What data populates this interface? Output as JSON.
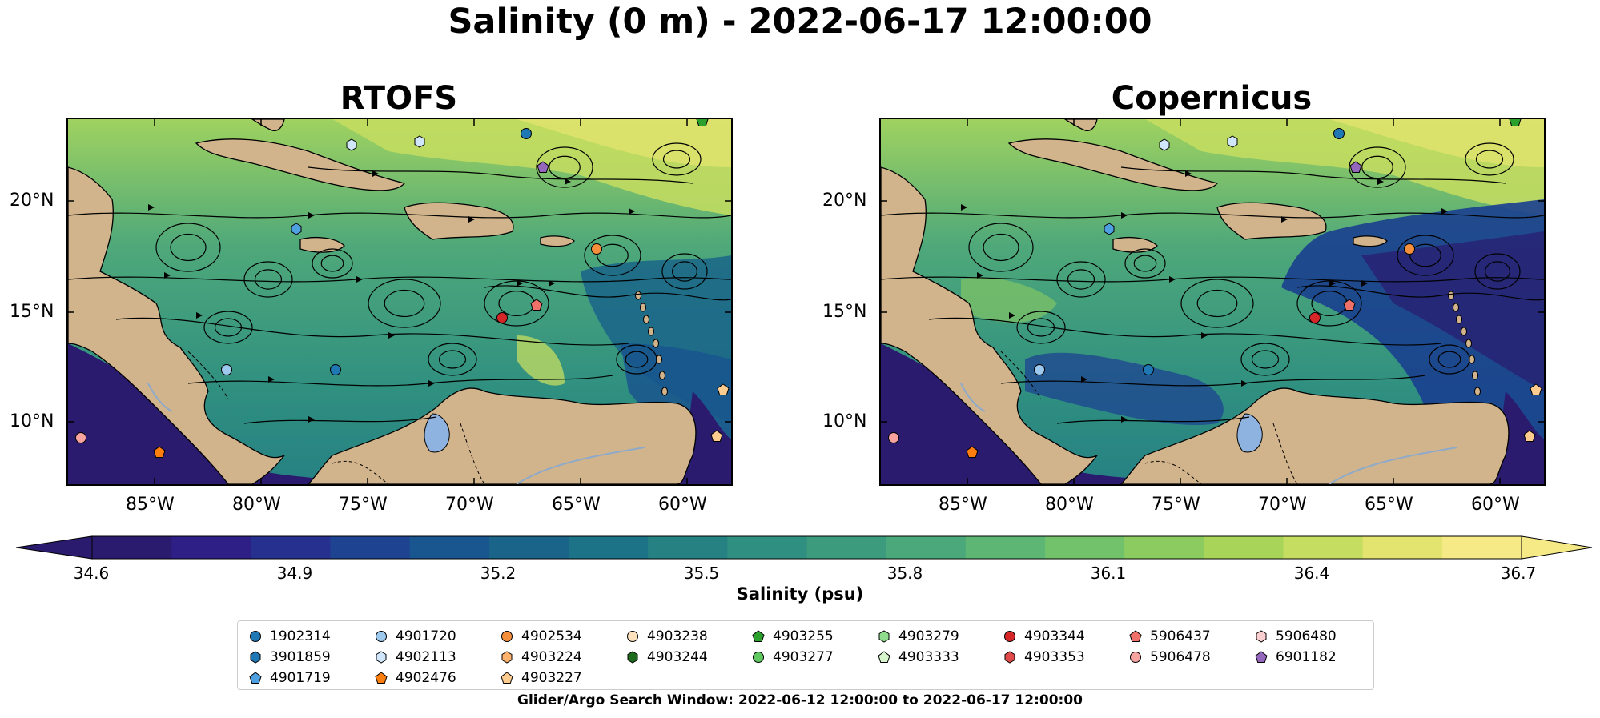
{
  "figure": {
    "title": "Salinity (0 m) - 2022-06-17 12:00:00",
    "footer": "Glider/Argo Search Window: 2022-06-12 12:00:00 to 2022-06-17 12:00:00"
  },
  "panels": [
    {
      "title": "RTOFS",
      "variant": "rtofs"
    },
    {
      "title": "Copernicus",
      "variant": "copernicus"
    }
  ],
  "axes": {
    "y_ticks": [
      "20°N",
      "15°N",
      "10°N"
    ],
    "x_ticks": [
      "85°W",
      "80°W",
      "75°W",
      "70°W",
      "65°W",
      "60°W"
    ]
  },
  "colorbar": {
    "title": "Salinity (psu)",
    "ticks": [
      "34.6",
      "34.9",
      "35.2",
      "35.5",
      "35.8",
      "36.1",
      "36.4",
      "36.7"
    ],
    "colors": [
      "#2a1b6e",
      "#2d1f85",
      "#26308f",
      "#1e4391",
      "#19558e",
      "#1a6489",
      "#1c7286",
      "#268183",
      "#2f8f80",
      "#3c9a7d",
      "#4ba87a",
      "#5db674",
      "#72c26b",
      "#8ccb60",
      "#a8d45a",
      "#c5dd60",
      "#e2e46f",
      "#f5ea85"
    ]
  },
  "legend": {
    "columns": [
      [
        {
          "id": "1902314",
          "shape": "circle",
          "color": "#1f77b4"
        },
        {
          "id": "3901859",
          "shape": "hexagon",
          "color": "#1f77b4"
        },
        {
          "id": "4901719",
          "shape": "pentagon",
          "color": "#4fa0e0"
        }
      ],
      [
        {
          "id": "4901720",
          "shape": "circle",
          "color": "#9ec9ee"
        },
        {
          "id": "4902113",
          "shape": "hexagon",
          "color": "#cfe6fb"
        },
        {
          "id": "4902476",
          "shape": "pentagon",
          "color": "#ff7f0e"
        }
      ],
      [
        {
          "id": "4902534",
          "shape": "circle",
          "color": "#f58f3c"
        },
        {
          "id": "4903224",
          "shape": "hexagon",
          "color": "#ffb26b"
        },
        {
          "id": "4903227",
          "shape": "pentagon",
          "color": "#ffcc8f"
        }
      ],
      [
        {
          "id": "4903238",
          "shape": "circle",
          "color": "#fde2bd"
        },
        {
          "id": "4903244",
          "shape": "hexagon",
          "color": "#1e6b1e"
        },
        {
          "id": "4903255",
          "shape": "pentagon",
          "color": "#2ca02c"
        }
      ],
      [
        {
          "id": "4903279",
          "shape": "hexagon",
          "color": "#8fdc8f"
        },
        {
          "id": "4903277",
          "shape": "circle",
          "color": "#5fc95f"
        },
        null
      ],
      [
        {
          "id": "4903333",
          "shape": "pentagon",
          "color": "#d6f5cc"
        },
        null,
        null
      ],
      [
        {
          "id": "4903344",
          "shape": "circle",
          "color": "#d62728"
        },
        {
          "id": "4903353",
          "shape": "hexagon",
          "color": "#e04a4a"
        },
        null
      ],
      [
        {
          "id": "5906437",
          "shape": "pentagon",
          "color": "#f0706a"
        },
        {
          "id": "5906478",
          "shape": "circle",
          "color": "#f7a3a0"
        },
        null
      ],
      [
        {
          "id": "5906480",
          "shape": "hexagon",
          "color": "#fbcfcf"
        },
        {
          "id": "6901182",
          "shape": "pentagon",
          "color": "#9467bd"
        },
        null
      ]
    ]
  },
  "icons": {
    "floats": "marker-icons",
    "streamlines": "flow-arrows"
  }
}
